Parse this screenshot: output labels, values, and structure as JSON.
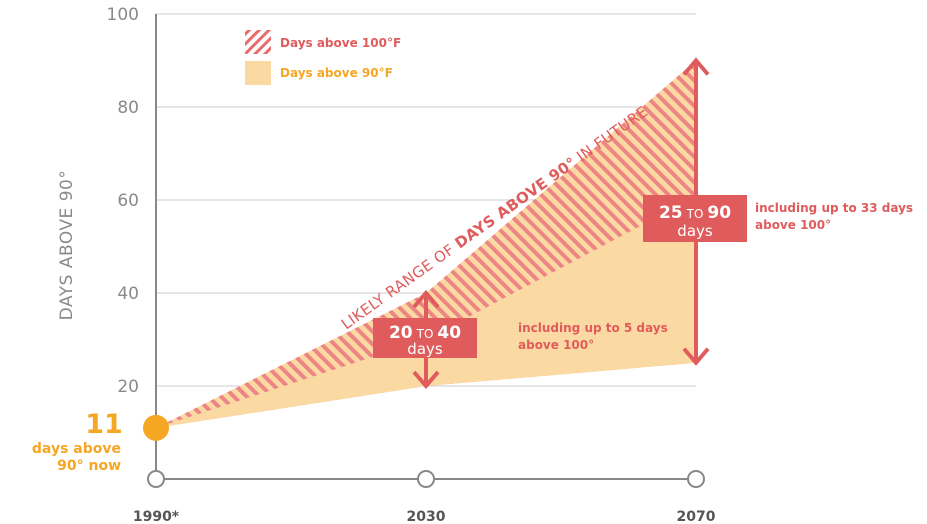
{
  "chart_data": {
    "type": "area",
    "ylabel": "DAYS ABOVE 90°",
    "ylim": [
      0,
      100
    ],
    "y_ticks": [
      "100",
      "80",
      "60",
      "40",
      "20"
    ],
    "x_categories": [
      "1990*",
      "2030",
      "2070"
    ],
    "grid": true,
    "legend": [
      {
        "label": "Days above 100°F",
        "color": "#e86a6a",
        "pattern": "hatched"
      },
      {
        "label": "Days above 90°F",
        "color": "#fbd9a3",
        "pattern": "solid"
      }
    ],
    "band_label": {
      "prefix": "LIKELY RANGE OF ",
      "emphasis": "DAYS ABOVE 90°",
      "suffix": " IN FUTURE"
    },
    "series": [
      {
        "name": "Days above 90°F",
        "x": [
          "1990*",
          "2030",
          "2070"
        ],
        "low": [
          11,
          20,
          25
        ],
        "high": [
          11,
          40,
          90
        ]
      }
    ],
    "baseline": {
      "x": "1990*",
      "value": 11,
      "number": "11",
      "text_line1": "days above",
      "text_line2": "90° now"
    },
    "ranges": [
      {
        "x": "2030",
        "low": 20,
        "high": 40,
        "low_text": "20",
        "to_text": "TO",
        "high_text": "40",
        "unit_text": "days",
        "note_line1": "including up to 5 days",
        "note_line2": "above 100°"
      },
      {
        "x": "2070",
        "low": 25,
        "high": 90,
        "low_text": "25",
        "to_text": "TO",
        "high_text": "90",
        "unit_text": "days",
        "note_line1": "including up to 33 days",
        "note_line2": "above 100°"
      }
    ],
    "colors": {
      "orange": "#f5a623",
      "peach": "#fbd9a3",
      "coral": "#e05c5c",
      "hatch": "#ee8585",
      "axis": "#888888",
      "grid": "#cccccc"
    }
  }
}
